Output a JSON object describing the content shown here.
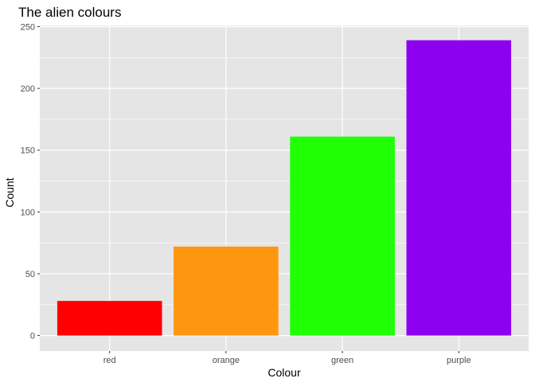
{
  "chart_data": {
    "type": "bar",
    "title": "The alien colours",
    "xlabel": "Colour",
    "ylabel": "Count",
    "categories": [
      "red",
      "orange",
      "green",
      "purple"
    ],
    "values": [
      28,
      72,
      161,
      239
    ],
    "colors": [
      "#FF0000",
      "#FF9610",
      "#21FF07",
      "#8E00F0"
    ],
    "ylim": [
      0,
      250
    ],
    "yticks": [
      0,
      50,
      100,
      150,
      200,
      250
    ],
    "ytick_labels": [
      "0",
      "50",
      "100",
      "150",
      "200",
      "250"
    ],
    "grid": true,
    "panel_background": "#E5E5E5",
    "grid_color": "#FFFFFF"
  }
}
